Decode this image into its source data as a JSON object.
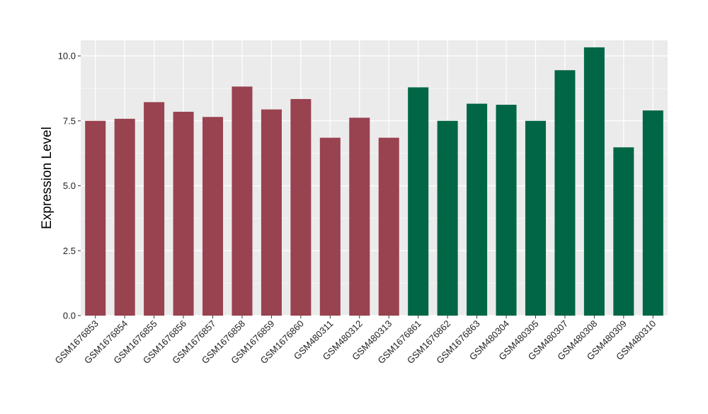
{
  "chart_data": {
    "type": "bar",
    "title": "",
    "xlabel": "",
    "ylabel": "Expression Level",
    "ylim": [
      0,
      10.6
    ],
    "yticks": [
      0.0,
      2.5,
      5.0,
      7.5,
      10.0
    ],
    "ytick_labels": [
      "0.0",
      "2.5",
      "5.0",
      "7.5",
      "10.0"
    ],
    "grid": true,
    "legend": "none",
    "background_color": "#ebebeb",
    "grid_color": "#ffffff",
    "categories": [
      "GSM1676853",
      "GSM1676854",
      "GSM1676855",
      "GSM1676856",
      "GSM1676857",
      "GSM1676858",
      "GSM1676859",
      "GSM1676860",
      "GSM480311",
      "GSM480312",
      "GSM480313",
      "GSM1676861",
      "GSM1676862",
      "GSM1676863",
      "GSM480304",
      "GSM480305",
      "GSM480307",
      "GSM480308",
      "GSM480309",
      "GSM480310"
    ],
    "values": [
      7.5,
      7.58,
      8.22,
      7.85,
      7.65,
      8.82,
      7.94,
      8.34,
      6.85,
      7.62,
      6.85,
      8.79,
      7.5,
      8.16,
      8.12,
      7.5,
      9.45,
      10.33,
      6.48,
      7.9
    ],
    "colors": [
      "#994250",
      "#994250",
      "#994250",
      "#994250",
      "#994250",
      "#994250",
      "#994250",
      "#994250",
      "#994250",
      "#994250",
      "#994250",
      "#006645",
      "#006645",
      "#006645",
      "#006645",
      "#006645",
      "#006645",
      "#006645",
      "#006645",
      "#006645"
    ]
  }
}
